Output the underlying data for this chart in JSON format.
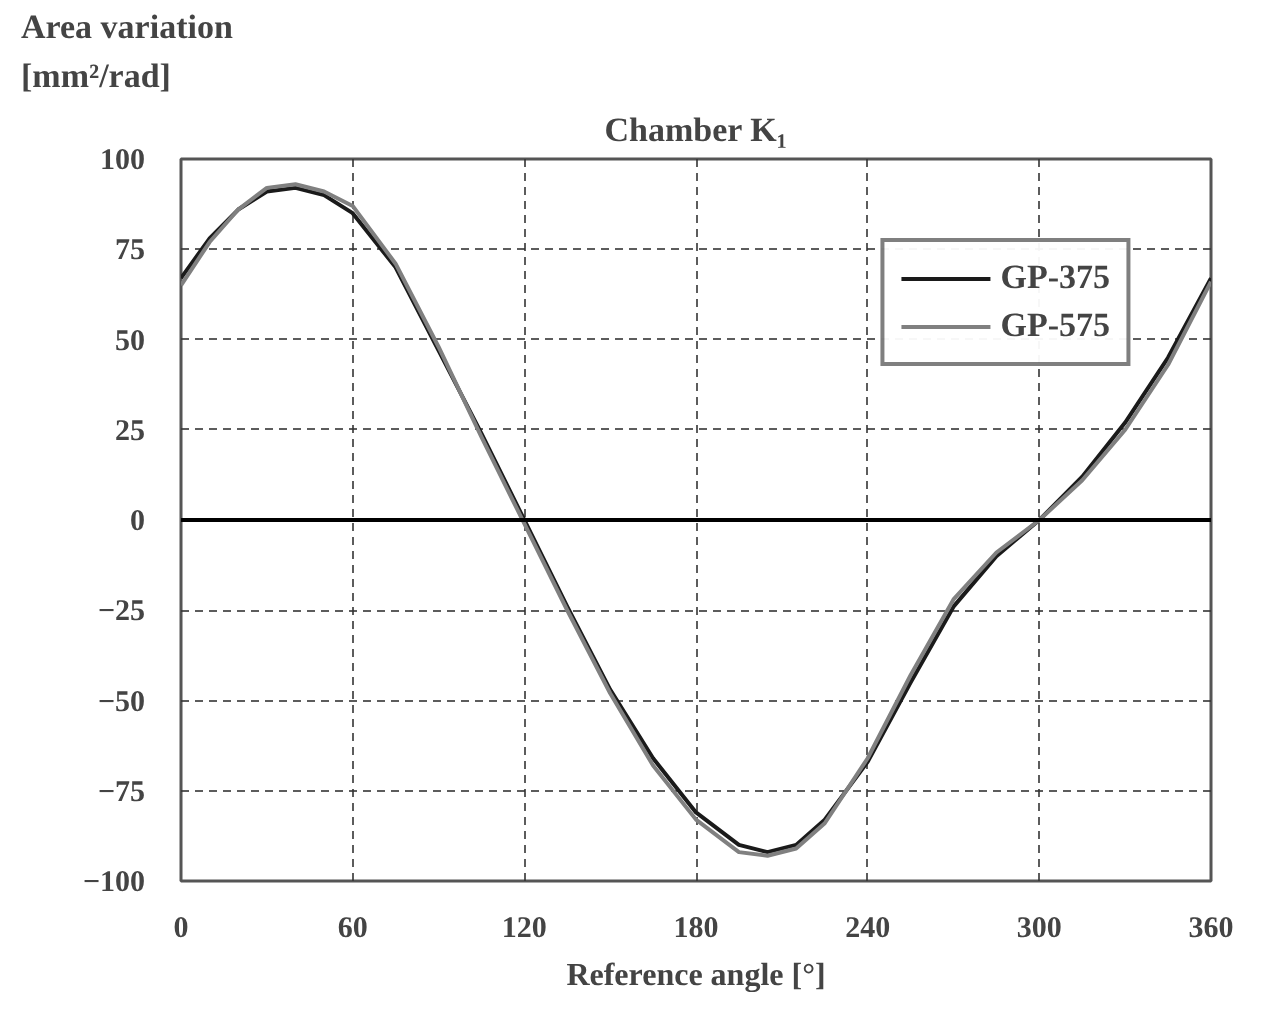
{
  "chart_data": {
    "type": "line",
    "title": "Chamber K₁",
    "ylabel": "Area variation\n[mm²/rad]",
    "xlabel": "Reference angle [°]",
    "x": [
      0,
      10,
      20,
      30,
      40,
      50,
      60,
      75,
      90,
      105,
      120,
      135,
      150,
      165,
      180,
      195,
      205,
      215,
      225,
      240,
      255,
      270,
      285,
      300,
      315,
      330,
      345,
      360
    ],
    "series": [
      {
        "name": "GP-375",
        "color": "#1a1a1a",
        "values": [
          67,
          78,
          86,
          91,
          92,
          90,
          85,
          70,
          47,
          24,
          0,
          -24,
          -47,
          -66,
          -81,
          -90,
          -92,
          -90,
          -83,
          -67,
          -45,
          -24,
          -10,
          0,
          12,
          27,
          45,
          67
        ]
      },
      {
        "name": "GP-575",
        "color": "#808080",
        "values": [
          65,
          77,
          86,
          92,
          93,
          91,
          87,
          71,
          48,
          23,
          -1,
          -25,
          -48,
          -68,
          -83,
          -92,
          -93,
          -91,
          -84,
          -66,
          -43,
          -22,
          -9,
          0,
          11,
          25,
          43,
          66
        ]
      }
    ],
    "xlim": [
      0,
      360
    ],
    "xticks": [
      0,
      60,
      120,
      180,
      240,
      300,
      360
    ],
    "ylim": [
      -100,
      100
    ],
    "yticks": [
      -100,
      -75,
      -50,
      -25,
      0,
      25,
      50,
      75,
      100
    ],
    "ref_lines": [
      {
        "axis": "y",
        "value": 0,
        "color": "#000000",
        "line_style": "solid"
      }
    ],
    "grid": true,
    "legend": "top right",
    "line_style": "solid",
    "marker": "none"
  }
}
